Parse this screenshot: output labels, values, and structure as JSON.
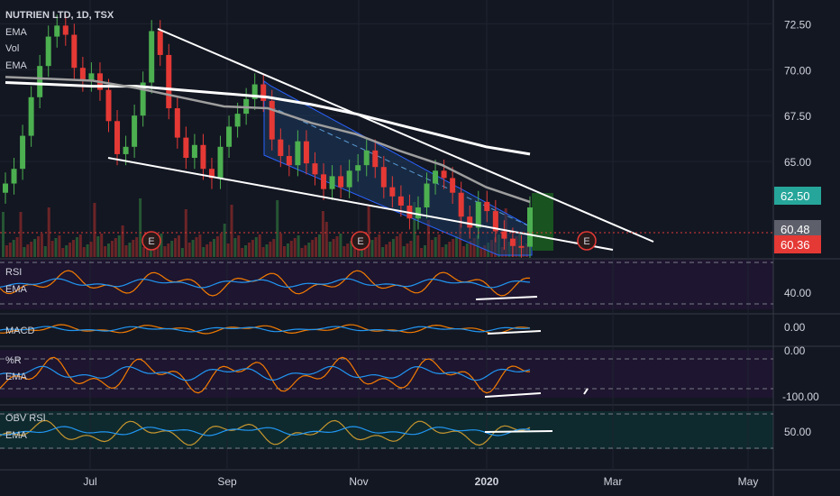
{
  "header": {
    "title": "NUTRIEN LTD, 1D, TSX",
    "ind1": "EMA",
    "ind2": "Vol",
    "ind3": "EMA"
  },
  "panes": {
    "rsi": {
      "label": "RSI",
      "ema": "EMA",
      "ticks": [
        "40.00"
      ]
    },
    "macd": {
      "label": "MACD",
      "ticks": [
        "0.00"
      ]
    },
    "wr": {
      "label": "%R",
      "ema": "EMA",
      "ticks": [
        "0.00",
        "-100.00"
      ]
    },
    "obv": {
      "label": "OBV RSI",
      "ema": "EMA",
      "ticks": [
        "50.00"
      ]
    }
  },
  "earnings_marker": "E",
  "colors": {
    "background": "#131722",
    "up": "#26a69a",
    "down": "#ef5350",
    "candle_up": "#4caf50",
    "candle_down": "#e53935",
    "rsi_line": "#f57c00",
    "ema_line": "#2196f3",
    "price_up_tag": "#26a69a",
    "price_gray_tag": "#5d606b",
    "price_red_tag": "#e53935",
    "channel_fill": "#1e3a5f",
    "trendline": "#ffffff"
  },
  "chart_data": {
    "type": "candlestick",
    "title": "NUTRIEN LTD, 1D, TSX",
    "x_labels": [
      "Jul",
      "Sep",
      "Nov",
      "2020",
      "Mar",
      "May"
    ],
    "y_ticks": [
      72.5,
      70.0,
      67.5,
      65.0
    ],
    "ylim": [
      59.8,
      73.4
    ],
    "price_tags": [
      {
        "value": "62.50",
        "color": "up"
      },
      {
        "value": "60.48",
        "color": "gray"
      },
      {
        "value": "60.36",
        "color": "red"
      }
    ],
    "series": [
      {
        "name": "Close",
        "dates": [
          "May 13",
          "May 16",
          "May 21",
          "May 24",
          "May 29",
          "Jun 3",
          "Jun 6",
          "Jun 11",
          "Jun 14",
          "Jun 19",
          "Jun 24",
          "Jun 27",
          "Jul 3",
          "Jul 8",
          "Jul 11",
          "Jul 16",
          "Jul 19",
          "Jul 24",
          "Jul 29",
          "Aug 1",
          "Aug 6",
          "Aug 9",
          "Aug 14",
          "Aug 19",
          "Aug 22",
          "Aug 27",
          "Aug 30",
          "Sep 5",
          "Sep 10",
          "Sep 13",
          "Sep 18",
          "Sep 23",
          "Sep 26",
          "Oct 1",
          "Oct 4",
          "Oct 9",
          "Oct 15",
          "Oct 18",
          "Oct 23",
          "Oct 28",
          "Oct 31",
          "Nov 5",
          "Nov 8",
          "Nov 13",
          "Nov 18",
          "Nov 21",
          "Nov 26",
          "Nov 29",
          "Dec 4",
          "Dec 9",
          "Dec 12",
          "Dec 17",
          "Dec 20",
          "Dec 26",
          "Dec 31",
          "Jan 6",
          "Jan 9",
          "Jan 14",
          "Jan 17",
          "Jan 22",
          "Jan 27",
          "Jan 30"
        ],
        "values": [
          63.8,
          64.6,
          66.4,
          68.5,
          70.2,
          71.8,
          72.4,
          71.9,
          70.1,
          69.4,
          69.8,
          68.9,
          67.2,
          65.4,
          65.8,
          67.5,
          69.3,
          72.1,
          70.8,
          67.9,
          66.3,
          65.2,
          65.9,
          64.6,
          64.1,
          65.8,
          66.9,
          67.6,
          68.4,
          69.2,
          68.3,
          66.2,
          65.3,
          64.8,
          66.1,
          64.9,
          64.3,
          63.5,
          64.2,
          63.6,
          64.5,
          64.8,
          65.6,
          64.7,
          63.6,
          63.1,
          62.6,
          61.9,
          62.5,
          63.8,
          64.5,
          64.1,
          63.3,
          62.0,
          61.4,
          62.8,
          62.3,
          61.2,
          60.8,
          60.4,
          60.36,
          62.5
        ]
      },
      {
        "name": "EMA (short)",
        "dates": [
          "May 13",
          "Jun 3",
          "Jun 24",
          "Jul 16",
          "Aug 6",
          "Aug 27",
          "Sep 18",
          "Oct 9",
          "Oct 31",
          "Nov 21",
          "Dec 12",
          "Jan 6",
          "Jan 22"
        ],
        "values": [
          69.6,
          69.5,
          69.4,
          69.0,
          68.5,
          68.0,
          67.9,
          67.1,
          66.5,
          65.6,
          64.8,
          63.6,
          62.8
        ]
      },
      {
        "name": "EMA (long)",
        "dates": [
          "May 13",
          "Jun 3",
          "Jun 24",
          "Jul 16",
          "Aug 6",
          "Aug 27",
          "Sep 18",
          "Oct 9",
          "Oct 31",
          "Nov 21",
          "Dec 12",
          "Jan 6",
          "Jan 22"
        ],
        "values": [
          69.3,
          69.2,
          69.1,
          69.1,
          68.9,
          68.7,
          68.5,
          68.1,
          67.6,
          67.0,
          66.4,
          65.8,
          65.4
        ]
      }
    ]
  }
}
